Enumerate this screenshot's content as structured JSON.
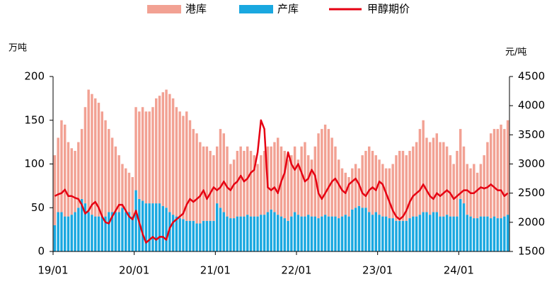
{
  "chart_data": {
    "type": "bar-line",
    "y_unit": "万吨",
    "y2_unit": "元/吨",
    "categories": [
      "19/01",
      null,
      null,
      null,
      null,
      null,
      null,
      null,
      null,
      null,
      null,
      null,
      null,
      null,
      null,
      null,
      null,
      null,
      null,
      null,
      null,
      null,
      null,
      null,
      "20/01",
      null,
      null,
      null,
      null,
      null,
      null,
      null,
      null,
      null,
      null,
      null,
      null,
      null,
      null,
      null,
      null,
      null,
      null,
      null,
      null,
      null,
      null,
      null,
      "21/01",
      null,
      null,
      null,
      null,
      null,
      null,
      null,
      null,
      null,
      null,
      null,
      null,
      null,
      null,
      null,
      null,
      null,
      null,
      null,
      null,
      null,
      null,
      null,
      "22/01",
      null,
      null,
      null,
      null,
      null,
      null,
      null,
      null,
      null,
      null,
      null,
      null,
      null,
      null,
      null,
      null,
      null,
      null,
      null,
      null,
      null,
      null,
      null,
      "23/01",
      null,
      null,
      null,
      null,
      null,
      null,
      null,
      null,
      null,
      null,
      null,
      null,
      null,
      null,
      null,
      null,
      null,
      null,
      null,
      null,
      null,
      null,
      null,
      "24/01",
      null,
      null,
      null,
      null,
      null,
      null,
      null,
      null,
      null,
      null,
      null,
      null,
      null,
      null
    ],
    "series": [
      {
        "name": "港库",
        "type": "bar",
        "color": "#f2a193",
        "values": [
          80,
          85,
          105,
          105,
          85,
          76,
          70,
          75,
          80,
          110,
          140,
          138,
          135,
          130,
          120,
          110,
          95,
          85,
          75,
          65,
          50,
          50,
          45,
          45,
          95,
          100,
          107,
          105,
          105,
          110,
          120,
          123,
          130,
          135,
          135,
          133,
          125,
          122,
          118,
          125,
          115,
          105,
          103,
          93,
          85,
          85,
          80,
          75,
          65,
          90,
          90,
          80,
          62,
          67,
          75,
          80,
          75,
          78,
          75,
          70,
          60,
          68,
          73,
          75,
          72,
          80,
          88,
          80,
          77,
          70,
          70,
          75,
          63,
          80,
          85,
          68,
          65,
          80,
          97,
          100,
          103,
          100,
          90,
          80,
          67,
          55,
          48,
          45,
          47,
          50,
          43,
          60,
          65,
          75,
          73,
          65,
          63,
          60,
          55,
          57,
          62,
          75,
          80,
          80,
          75,
          77,
          80,
          85,
          98,
          105,
          85,
          83,
          85,
          90,
          85,
          85,
          78,
          70,
          60,
          75,
          80,
          65,
          58,
          55,
          62,
          52,
          60,
          70,
          85,
          97,
          100,
          102,
          107,
          100,
          108
        ]
      },
      {
        "name": "产库",
        "type": "bar",
        "color": "#1aa8e0",
        "values": [
          30,
          45,
          45,
          40,
          40,
          42,
          45,
          50,
          60,
          55,
          45,
          42,
          40,
          40,
          40,
          40,
          45,
          45,
          45,
          45,
          50,
          45,
          45,
          40,
          70,
          60,
          58,
          55,
          55,
          55,
          55,
          55,
          52,
          50,
          45,
          42,
          40,
          38,
          37,
          35,
          35,
          35,
          32,
          32,
          35,
          35,
          35,
          35,
          55,
          50,
          45,
          40,
          38,
          38,
          40,
          40,
          40,
          42,
          40,
          40,
          40,
          42,
          42,
          45,
          48,
          45,
          42,
          40,
          38,
          35,
          40,
          45,
          42,
          40,
          40,
          42,
          40,
          40,
          38,
          40,
          42,
          40,
          40,
          40,
          38,
          40,
          42,
          40,
          48,
          50,
          52,
          50,
          50,
          45,
          42,
          45,
          42,
          40,
          40,
          38,
          38,
          35,
          35,
          35,
          35,
          38,
          40,
          40,
          42,
          45,
          45,
          42,
          45,
          45,
          40,
          40,
          42,
          40,
          40,
          40,
          60,
          55,
          42,
          40,
          38,
          38,
          40,
          40,
          40,
          38,
          40,
          38,
          38,
          40,
          42
        ]
      },
      {
        "name": "甲醇期价",
        "type": "line",
        "axis": "y2",
        "color": "#e60012",
        "values": [
          2450,
          2480,
          2500,
          2560,
          2450,
          2450,
          2420,
          2400,
          2300,
          2150,
          2200,
          2300,
          2350,
          2250,
          2100,
          2000,
          1980,
          2100,
          2200,
          2300,
          2300,
          2200,
          2100,
          2050,
          2200,
          2000,
          1800,
          1650,
          1700,
          1750,
          1700,
          1750,
          1750,
          1700,
          1900,
          2000,
          2050,
          2100,
          2150,
          2300,
          2400,
          2350,
          2400,
          2450,
          2550,
          2400,
          2500,
          2600,
          2550,
          2600,
          2700,
          2600,
          2550,
          2650,
          2700,
          2800,
          2700,
          2750,
          2850,
          2900,
          3200,
          3750,
          3600,
          2600,
          2550,
          2600,
          2500,
          2700,
          2850,
          3200,
          3000,
          2900,
          3000,
          2850,
          2700,
          2750,
          2900,
          2800,
          2500,
          2400,
          2500,
          2600,
          2700,
          2750,
          2650,
          2550,
          2500,
          2650,
          2700,
          2750,
          2650,
          2500,
          2450,
          2550,
          2600,
          2550,
          2700,
          2650,
          2500,
          2350,
          2200,
          2100,
          2050,
          2100,
          2200,
          2350,
          2450,
          2500,
          2550,
          2650,
          2550,
          2450,
          2400,
          2500,
          2450,
          2500,
          2550,
          2500,
          2400,
          2450,
          2500,
          2550,
          2550,
          2500,
          2500,
          2550,
          2600,
          2580,
          2600,
          2650,
          2600,
          2550,
          2550,
          2450,
          2500
        ]
      }
    ],
    "ylim": [
      0,
      200
    ],
    "yticks": [
      0,
      50,
      100,
      150,
      200
    ],
    "y2lim": [
      1500,
      4500
    ],
    "y2ticks": [
      1500,
      2000,
      2500,
      3000,
      3500,
      4000,
      4500
    ]
  }
}
